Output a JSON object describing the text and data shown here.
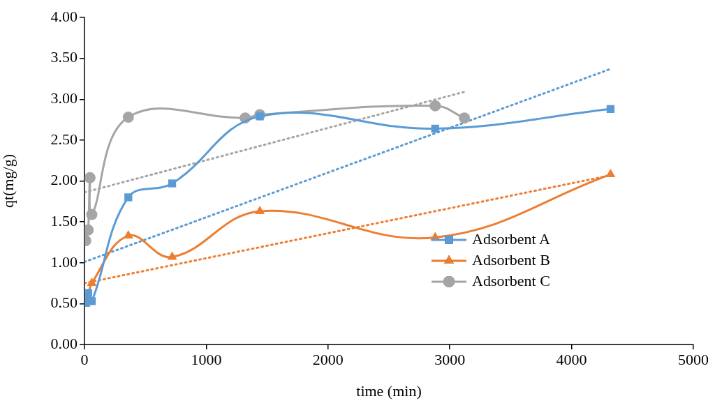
{
  "chart_data": {
    "type": "line",
    "xlabel": "time (min)",
    "ylabel": "qt(mg/g)",
    "xlim": [
      0,
      5000
    ],
    "xticks": [
      0,
      1000,
      2000,
      3000,
      4000,
      5000
    ],
    "ylim": [
      0,
      4
    ],
    "yticks": [
      {
        "value": 0,
        "label": "0.00"
      },
      {
        "value": 0.5,
        "label": "0.50"
      },
      {
        "value": 1,
        "label": "1.00"
      },
      {
        "value": 1.5,
        "label": "1.50"
      },
      {
        "value": 2,
        "label": "2.00"
      },
      {
        "value": 2.5,
        "label": "2.50"
      },
      {
        "value": 3,
        "label": "3.00"
      },
      {
        "value": 3.5,
        "label": "3.50"
      },
      {
        "value": 4,
        "label": "4.00"
      }
    ],
    "grid": false,
    "legend": "right",
    "series": [
      {
        "name": "Adsorbent A",
        "color": "#5b9bd5",
        "marker": "square",
        "line_style": "solid",
        "x": [
          10,
          30,
          60,
          360,
          720,
          1440,
          2880,
          4320
        ],
        "values": [
          0.51,
          0.63,
          0.53,
          1.8,
          1.97,
          2.79,
          2.64,
          2.88
        ]
      },
      {
        "name": "Adsorbent B",
        "color": "#ed7d31",
        "marker": "triangle",
        "line_style": "solid",
        "x": [
          10,
          30,
          60,
          360,
          720,
          1440,
          2880,
          4320
        ],
        "values": [
          0.5,
          0.58,
          0.75,
          1.33,
          1.07,
          1.63,
          1.31,
          2.08
        ]
      },
      {
        "name": "Adsorbent C",
        "color": "#a5a5a5",
        "marker": "circle",
        "line_style": "solid",
        "x": [
          10,
          30,
          45,
          60,
          360,
          1320,
          1440,
          2880,
          3120
        ],
        "values": [
          1.27,
          1.4,
          2.04,
          1.59,
          2.78,
          2.77,
          2.81,
          2.92,
          2.77
        ]
      },
      {
        "type": "line",
        "color": "#5b9bd5",
        "marker": "none",
        "line_style": "dotted",
        "x": [
          0,
          4320
        ],
        "values": [
          1.01,
          3.37
        ]
      },
      {
        "type": "line",
        "color": "#ed7d31",
        "marker": "none",
        "line_style": "dotted",
        "x": [
          0,
          4320
        ],
        "values": [
          0.75,
          2.07
        ]
      },
      {
        "type": "line",
        "color": "#a5a5a5",
        "marker": "none",
        "line_style": "dotted",
        "x": [
          0,
          3120
        ],
        "values": [
          1.86,
          3.09
        ]
      }
    ]
  }
}
